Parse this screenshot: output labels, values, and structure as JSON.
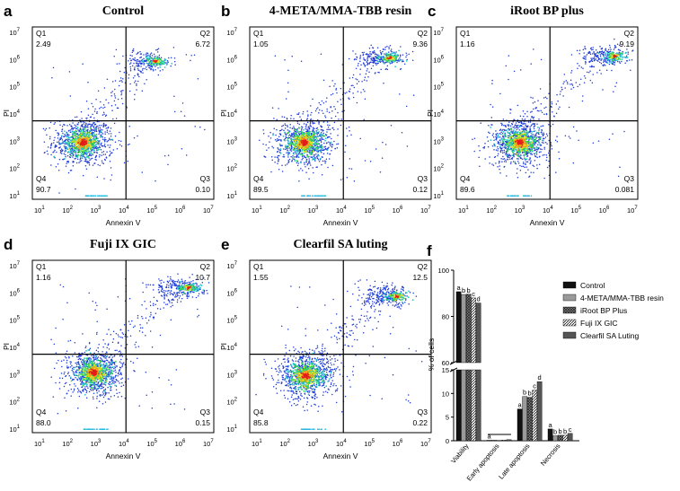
{
  "panels": [
    {
      "label": "a",
      "title": "Control",
      "q1": "2.49",
      "q2": "6.72",
      "q3": "0.10",
      "q4": "90.7",
      "xlabel": "Annexin V",
      "ylabel": "PI"
    },
    {
      "label": "b",
      "title": "4-META/MMA-TBB resin",
      "q1": "1.05",
      "q2": "9.36",
      "q3": "0.12",
      "q4": "89.5",
      "xlabel": "Annexin V",
      "ylabel": "PI"
    },
    {
      "label": "c",
      "title": "iRoot BP plus",
      "q1": "1.16",
      "q2": "9.19",
      "q3": "0.081",
      "q4": "89.6",
      "xlabel": "Annexin V",
      "ylabel": "PI"
    },
    {
      "label": "d",
      "title": "Fuji IX GIC",
      "q1": "1.16",
      "q2": "10.7",
      "q3": "0.15",
      "q4": "88.0",
      "xlabel": "Annexin V",
      "ylabel": "PI"
    },
    {
      "label": "e",
      "title": "Clearfil SA luting",
      "q1": "1.55",
      "q2": "12.5",
      "q3": "0.22",
      "q4": "85.8",
      "xlabel": "Annexin V",
      "ylabel": "PI"
    }
  ],
  "quadrant_names": [
    "Q1",
    "Q2",
    "Q3",
    "Q4"
  ],
  "log_ticks": [
    "1",
    "2",
    "3",
    "4",
    "5",
    "6",
    "7"
  ],
  "log_base": "10",
  "chart_data": {
    "type": "bar",
    "panel_label": "f",
    "ylabel": "% of cells",
    "categories": [
      "Viability",
      "Early apoptosis",
      "Late apoptosis",
      "Necrosis"
    ],
    "y_ticks_upper": [
      "60",
      "80",
      "100"
    ],
    "y_ticks_lower": [
      "0",
      "5",
      "10",
      "15"
    ],
    "y_break": [
      15,
      60
    ],
    "series": [
      {
        "name": "Control",
        "values": [
          90.7,
          0.1,
          6.72,
          2.49
        ],
        "letters": [
          "a",
          "a",
          "a",
          "a"
        ],
        "color": "#111111"
      },
      {
        "name": "4-META/MMA-TBB resin",
        "values": [
          89.5,
          0.12,
          9.36,
          1.05
        ],
        "letters": [
          "b",
          "",
          "b",
          "b"
        ],
        "color": "#9a9a9a"
      },
      {
        "name": "iRoot BP Plus",
        "values": [
          89.6,
          0.08,
          9.19,
          1.16
        ],
        "letters": [
          "b",
          "",
          "b",
          "b"
        ],
        "color": "#777777"
      },
      {
        "name": "Fuji IX GIC",
        "values": [
          88.0,
          0.15,
          10.7,
          1.16
        ],
        "letters": [
          "c",
          "",
          "c",
          "b"
        ],
        "color": "#bbbbbb"
      },
      {
        "name": "Clearfil SA Luting",
        "values": [
          85.8,
          0.22,
          12.5,
          1.55
        ],
        "letters": [
          "d",
          "",
          "d",
          "c"
        ],
        "color": "#555555"
      }
    ]
  }
}
